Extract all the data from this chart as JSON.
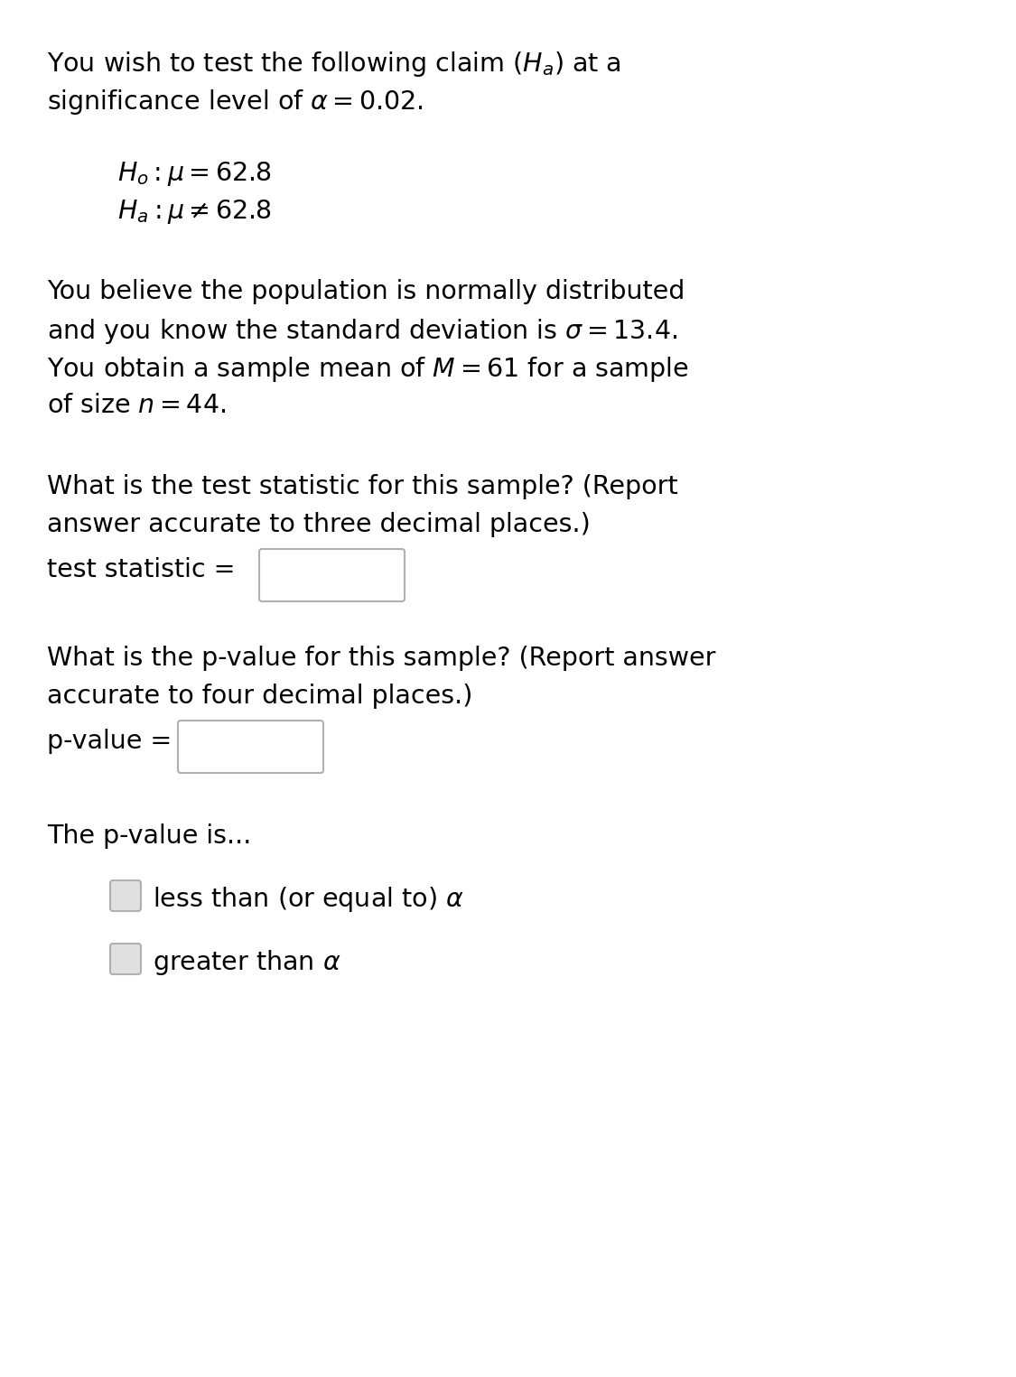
{
  "bg_color": "#ffffff",
  "text_color": "#000000",
  "line1": "You wish to test the following claim ($H_a$) at a",
  "line2": "significance level of $\\alpha = 0.02$.",
  "hyp_h0": "$H_o:\\mu = 62.8$",
  "hyp_ha": "$H_a:\\mu \\neq 62.8$",
  "para1_line1": "You believe the population is normally distributed",
  "para1_line2": "and you know the standard deviation is $\\sigma = 13.4$.",
  "para1_line3": "You obtain a sample mean of $M = 61$ for a sample",
  "para1_line4": "of size $n = 44$.",
  "q1_line1": "What is the test statistic for this sample? (Report",
  "q1_line2": "answer accurate to three decimal places.)",
  "label_ts": "test statistic =",
  "q2_line1": "What is the p-value for this sample? (Report answer",
  "q2_line2": "accurate to four decimal places.)",
  "label_pv": "p-value =",
  "pvalue_label": "The p-value is...",
  "option1": "less than (or equal to) $\\alpha$",
  "option2": "greater than $\\alpha$",
  "font_size_main": 20.5,
  "font_size_hyp": 20.5
}
